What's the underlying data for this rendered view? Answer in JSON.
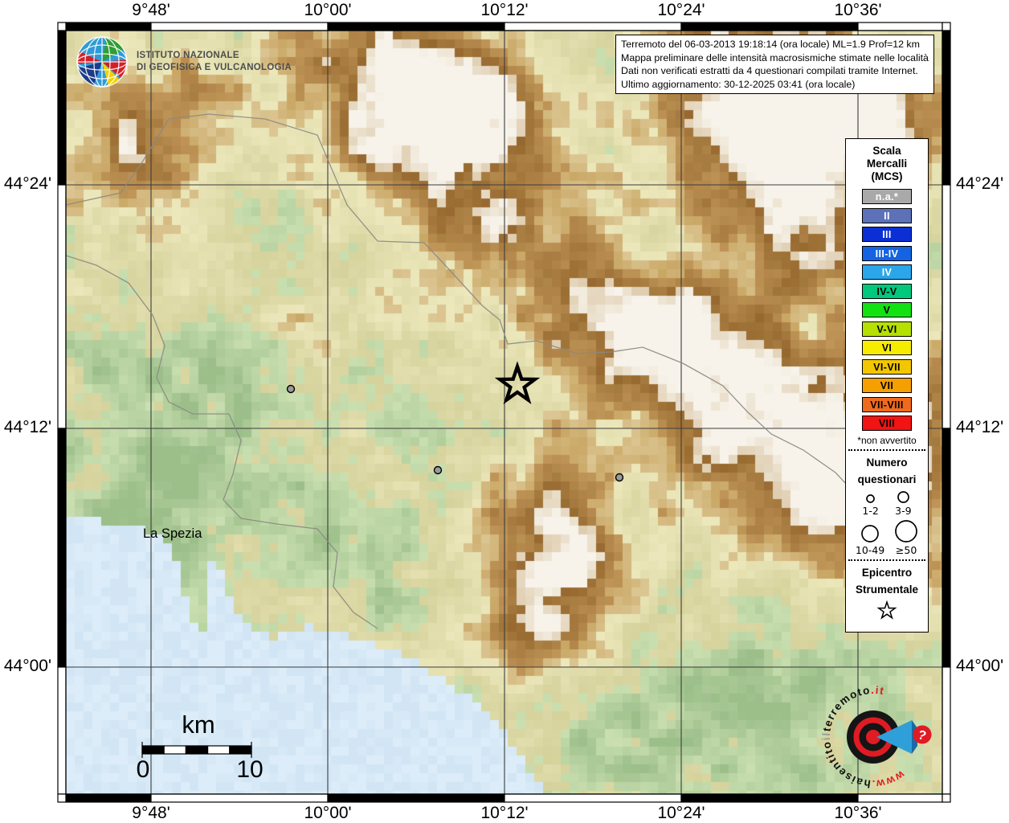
{
  "agency": {
    "line1": "ISTITUTO NAZIONALE",
    "line2": "DI GEOFISICA E VULCANOLOGIA"
  },
  "info_box": {
    "lines": [
      "Terremoto del 06-03-2013 19:18:14 (ora locale) ML=1.9 Prof=12 km",
      "Mappa preliminare delle intensità macrosismiche stimate nelle località",
      "Dati non verificati estratti da 4 questionari compilati tramite Internet.",
      "Ultimo aggiornamento: 30-12-2025 03:41 (ora locale)"
    ]
  },
  "axes": {
    "lon": [
      "9°48'",
      "10°00'",
      "10°12'",
      "10°24'",
      "10°36'"
    ],
    "lat": [
      "44°24'",
      "44°12'",
      "44°00'"
    ]
  },
  "legend": {
    "title_lines": [
      "Scala",
      "Mercalli",
      "(MCS)"
    ],
    "scale": [
      {
        "label": "n.a.*",
        "color": "#a9a9a9",
        "text_color": "#ffffff"
      },
      {
        "label": "II",
        "color": "#5c71b7",
        "text_color": "#ffffff"
      },
      {
        "label": "III",
        "color": "#0b2fd4",
        "text_color": "#ffffff"
      },
      {
        "label": "III-IV",
        "color": "#1463e2",
        "text_color": "#ffffff"
      },
      {
        "label": "IV",
        "color": "#2ba6ea",
        "text_color": "#ffffff"
      },
      {
        "label": "IV-V",
        "color": "#00c87d",
        "text_color": "#000000"
      },
      {
        "label": "V",
        "color": "#12e112",
        "text_color": "#000000"
      },
      {
        "label": "V-VI",
        "color": "#b6e000",
        "text_color": "#000000"
      },
      {
        "label": "VI",
        "color": "#f7ec00",
        "text_color": "#000000"
      },
      {
        "label": "VI-VII",
        "color": "#f3c700",
        "text_color": "#000000"
      },
      {
        "label": "VII",
        "color": "#f5a000",
        "text_color": "#000000"
      },
      {
        "label": "VII-VIII",
        "color": "#ee6a1d",
        "text_color": "#000000"
      },
      {
        "label": "VIII",
        "color": "#f21313",
        "text_color": "#000000"
      }
    ],
    "footnote": "*non avvertito",
    "questionnaires": {
      "title_lines": [
        "Numero",
        "questionari"
      ],
      "sizes": [
        {
          "label": "1-2"
        },
        {
          "label": "3-9"
        },
        {
          "label": "10-49"
        },
        {
          "label": "≥50"
        }
      ]
    },
    "epicenter_title_lines": [
      "Epicentro",
      "Strumentale"
    ]
  },
  "map": {
    "place": "La Spezia",
    "scalebar": {
      "unit": "km",
      "start": "0",
      "end": "10"
    }
  },
  "watermark": {
    "prefix": "www.",
    "word1": "haisentito",
    "word2": "il",
    "word3": "terremoto",
    "suffix": ".it",
    "badge": "?",
    "accent_color": "#e01b24"
  }
}
